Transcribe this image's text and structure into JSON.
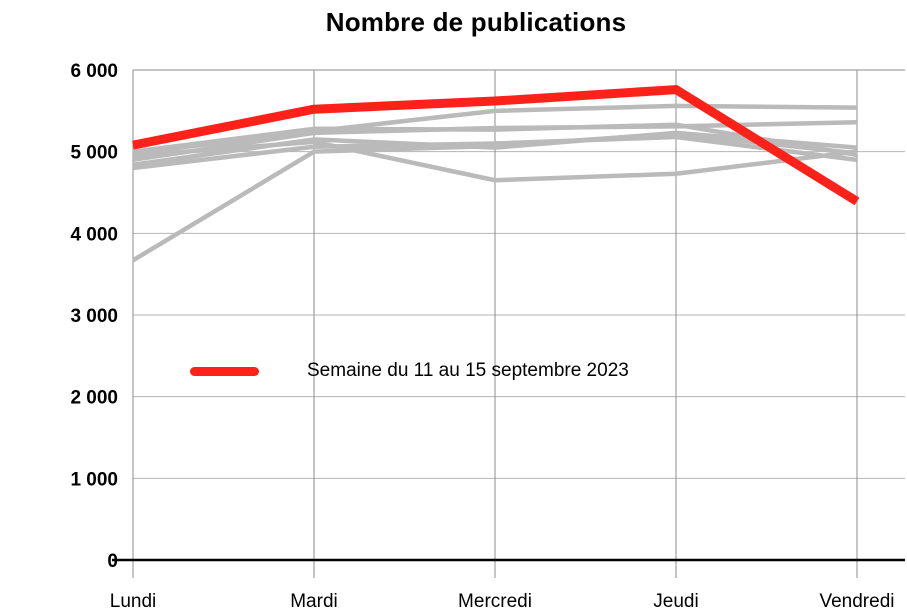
{
  "chart_data": {
    "type": "line",
    "title": "Nombre de publications",
    "categories": [
      "Lundi",
      "Mardi",
      "Mercredi",
      "Jeudi",
      "Vendredi"
    ],
    "ylim": [
      0,
      6000
    ],
    "grid": true,
    "y_ticks": [
      {
        "value": 0,
        "label": "0"
      },
      {
        "value": 1000,
        "label": "1 000"
      },
      {
        "value": 2000,
        "label": "2 000"
      },
      {
        "value": 3000,
        "label": "3 000"
      },
      {
        "value": 4000,
        "label": "4 000"
      },
      {
        "value": 5000,
        "label": "5 000"
      },
      {
        "value": 6000,
        "label": "6 000"
      }
    ],
    "legend": {
      "position": "inside-left-middle",
      "swatch_color": "#fc2119",
      "label": "Semaine du 11 au 15 septembre 2023"
    },
    "colors": {
      "highlight": "#fc2119",
      "previous_weeks": "#bababa",
      "grid": "#b4b4b4",
      "frame": "#8c8c8c",
      "axis": "#000000"
    },
    "series": [
      {
        "highlight": true,
        "color": "#fc2119",
        "values": [
          5080,
          5520,
          5620,
          5760,
          4390
        ]
      },
      {
        "highlight": false,
        "color": "#bababa",
        "values": [
          4980,
          5250,
          5500,
          5560,
          5540
        ]
      },
      {
        "highlight": false,
        "color": "#bababa",
        "values": [
          4900,
          5230,
          5290,
          5310,
          5360
        ]
      },
      {
        "highlight": false,
        "color": "#bababa",
        "values": [
          5000,
          5280,
          5270,
          5330,
          4960
        ]
      },
      {
        "highlight": false,
        "color": "#bababa",
        "values": [
          4840,
          5150,
          5050,
          5230,
          5050
        ]
      },
      {
        "highlight": false,
        "color": "#bababa",
        "values": [
          4800,
          5060,
          5100,
          5180,
          4900
        ]
      },
      {
        "highlight": false,
        "color": "#bababa",
        "values": [
          4950,
          5120,
          4650,
          4730,
          5000
        ]
      },
      {
        "highlight": false,
        "color": "#bababa",
        "values": [
          3670,
          5000,
          5070,
          5220,
          4980
        ]
      }
    ]
  }
}
